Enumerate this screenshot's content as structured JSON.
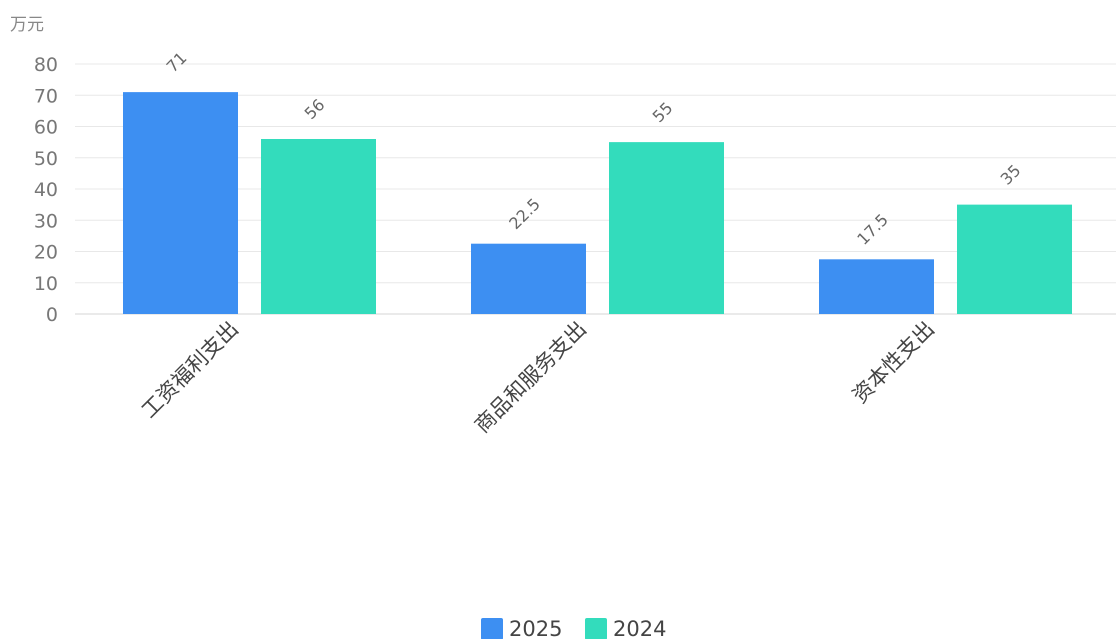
{
  "chart_data": {
    "type": "bar",
    "unit": "万元",
    "categories": [
      "工资福利支出",
      "商品和服务支出",
      "资本性支出"
    ],
    "series": [
      {
        "name": "2025",
        "values": [
          71,
          22.5,
          17.5
        ],
        "color": "#3d8ff2"
      },
      {
        "name": "2024",
        "values": [
          56,
          55,
          35
        ],
        "color": "#33dcbc"
      }
    ],
    "y_ticks": [
      0,
      10,
      20,
      30,
      40,
      50,
      60,
      70,
      80
    ],
    "ylim": [
      0,
      80
    ],
    "grid": true,
    "legend_position": "bottom-center"
  }
}
